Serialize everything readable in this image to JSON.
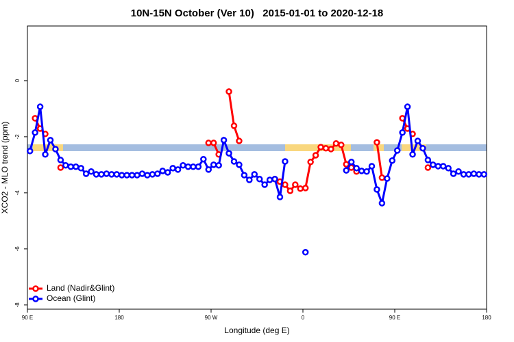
{
  "chart_data": {
    "type": "line",
    "title": "10N-15N October (Ver 10)   2015-01-01 to 2020-12-18",
    "x_label": "Longitude (deg E)",
    "y_label": "XCO2 - MLO trend (ppm)",
    "x": [
      92.5,
      97.5,
      102.5,
      107.5,
      112.5,
      117.5,
      122.5,
      127.5,
      132.5,
      137.5,
      142.5,
      147.5,
      152.5,
      157.5,
      162.5,
      167.5,
      172.5,
      177.5,
      182.5,
      187.5,
      192.5,
      197.5,
      202.5,
      207.5,
      212.5,
      217.5,
      222.5,
      227.5,
      232.5,
      237.5,
      242.5,
      247.5,
      252.5,
      257.5,
      262.5,
      267.5,
      272.5,
      277.5,
      282.5,
      287.5,
      292.5,
      297.5,
      302.5,
      307.5,
      312.5,
      317.5,
      322.5,
      327.5,
      332.5,
      337.5,
      342.5,
      347.5,
      352.5,
      357.5,
      362.5,
      367.5,
      372.5,
      377.5,
      382.5,
      387.5,
      392.5,
      397.5,
      402.5,
      407.5,
      412.5,
      417.5,
      422.5,
      427.5,
      432.5,
      437.5,
      442.5,
      447.5,
      452.5,
      457.5,
      462.5,
      467.5,
      472.5,
      477.5,
      482.5,
      487.5,
      492.5,
      497.5,
      502.5,
      507.5,
      512.5,
      517.5,
      522.5,
      527.5,
      532.5,
      537.5
    ],
    "series": [
      {
        "name": "Land (Nadir&Glint)",
        "color": "#ff0000",
        "values": [
          null,
          -1.34,
          -1.71,
          -1.9,
          null,
          null,
          -3.1,
          null,
          null,
          null,
          null,
          null,
          null,
          null,
          null,
          null,
          null,
          null,
          null,
          null,
          null,
          null,
          null,
          null,
          null,
          null,
          null,
          null,
          null,
          null,
          null,
          null,
          null,
          null,
          null,
          -2.22,
          -2.22,
          -2.63,
          null,
          -0.39,
          -1.61,
          -2.15,
          null,
          null,
          null,
          null,
          null,
          null,
          -3.51,
          -3.6,
          -3.71,
          -3.93,
          -3.71,
          -3.85,
          -3.83,
          -2.9,
          -2.66,
          -2.37,
          -2.41,
          -2.44,
          -2.24,
          -2.29,
          -2.98,
          -3.1,
          -3.24,
          null,
          null,
          null,
          -2.2,
          -3.46,
          null,
          null,
          null,
          -1.34,
          -1.71,
          -1.9,
          null,
          null,
          -3.1,
          null,
          null,
          null,
          null,
          null,
          null,
          null,
          null,
          null,
          null,
          null
        ]
      },
      {
        "name": "Ocean (Glint)",
        "color": "#0000ff",
        "values": [
          -2.51,
          -1.85,
          -0.93,
          -2.63,
          -2.12,
          -2.44,
          -2.83,
          -3.02,
          -3.07,
          -3.07,
          -3.12,
          -3.32,
          -3.24,
          -3.34,
          -3.34,
          -3.32,
          -3.34,
          -3.34,
          -3.37,
          -3.37,
          -3.37,
          -3.37,
          -3.32,
          -3.37,
          -3.34,
          -3.32,
          -3.22,
          -3.27,
          -3.12,
          -3.17,
          -3.02,
          -3.07,
          -3.07,
          -3.07,
          -2.8,
          -3.17,
          -3.0,
          -3.02,
          -2.12,
          -2.59,
          -2.88,
          -3.0,
          -3.37,
          -3.54,
          -3.34,
          -3.51,
          -3.71,
          -3.54,
          -3.51,
          -4.15,
          -2.88,
          null,
          null,
          null,
          -6.12,
          null,
          null,
          null,
          null,
          null,
          null,
          null,
          -3.2,
          -2.9,
          -3.12,
          -3.22,
          -3.24,
          -3.05,
          -3.88,
          -4.37,
          -3.49,
          -2.85,
          -2.49,
          -1.85,
          -0.93,
          -2.63,
          -2.15,
          -2.41,
          -2.83,
          -3.0,
          -3.05,
          -3.05,
          -3.12,
          -3.32,
          -3.24,
          -3.34,
          -3.34,
          -3.32,
          -3.34,
          -3.34
        ]
      }
    ],
    "xlim": [
      90,
      540
    ],
    "xticks": [
      {
        "value": 90,
        "label": "90 E"
      },
      180,
      {
        "value": 270,
        "label": "90 W"
      },
      {
        "value": 360,
        "label": "0"
      },
      {
        "value": 450,
        "label": "90 E"
      },
      {
        "value": 540,
        "label": "180"
      }
    ],
    "ylim": [
      -8.15,
      1.95
    ],
    "yticks": [
      0,
      -2,
      -4,
      -6,
      -8
    ],
    "legend": "bottom-left"
  }
}
